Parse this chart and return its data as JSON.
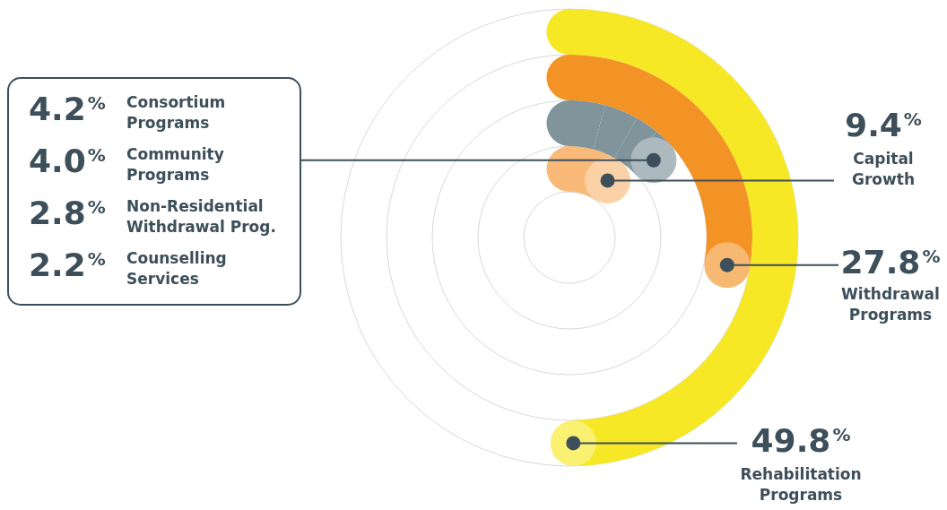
{
  "chart_data": {
    "type": "other",
    "categories": [
      "Rehabilitation Programs",
      "Withdrawal Programs",
      "Consortium Programs",
      "Community Programs",
      "Non-Residential Withdrawal Prog.",
      "Counselling Services",
      "Capital Growth"
    ],
    "values": [
      49.8,
      27.8,
      4.2,
      4.0,
      2.8,
      2.2,
      9.4
    ],
    "value_labels": [
      "49.8%",
      "27.8%",
      "4.2%",
      "4.0%",
      "2.8%",
      "2.2%",
      "9.4%"
    ],
    "colors": [
      "#f7e826",
      "#f39325",
      "#7f949b",
      "#7f949b",
      "#7f949b",
      "#7f949b",
      "#f9b978"
    ]
  }
}
